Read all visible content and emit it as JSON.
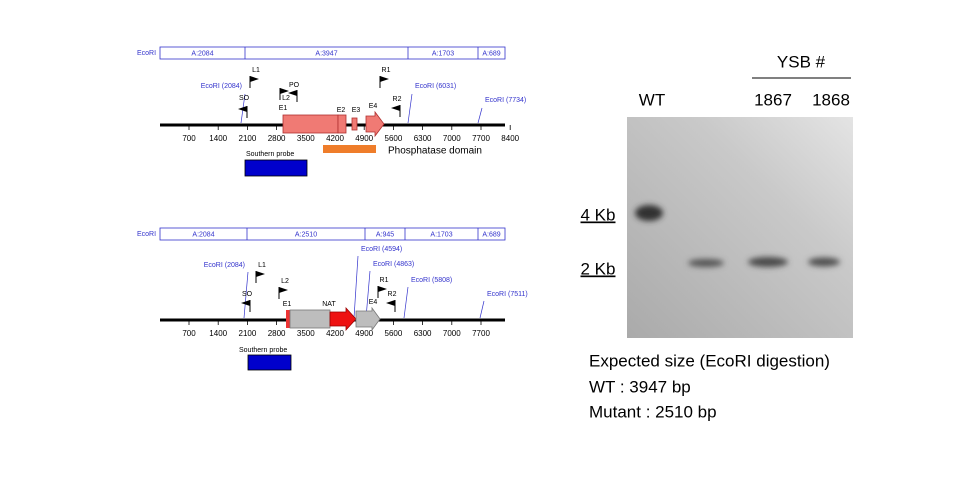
{
  "map_wt": {
    "enzyme": "EcoRI",
    "fragments": [
      "A:2084",
      "A:3947",
      "A:1703",
      "A:689"
    ],
    "ticks": [
      700,
      1400,
      2100,
      2800,
      3500,
      4200,
      4900,
      5600,
      6300,
      7000,
      7700,
      8400
    ],
    "sites": [
      "EcoRI (2084)",
      "EcoRI (6031)",
      "EcoRI (7734)"
    ],
    "primers": [
      "L1",
      "SO",
      "L2",
      "PO",
      "E1",
      "E2",
      "E3",
      "E4",
      "R1",
      "R2"
    ],
    "domain": "Phosphatase domain",
    "probe": "Southern probe"
  },
  "map_mutant": {
    "enzyme": "EcoRI",
    "fragments": [
      "A:2084",
      "A:2510",
      "A:945",
      "A:1703",
      "A:689"
    ],
    "ticks": [
      700,
      1400,
      2100,
      2800,
      3500,
      4200,
      4900,
      5600,
      6300,
      7000,
      7700
    ],
    "sites": [
      "EcoRI (2084)",
      "EcoRI (4594)",
      "EcoRI (4863)",
      "EcoRI (5808)",
      "EcoRI (7511)"
    ],
    "primers": [
      "L1",
      "L2",
      "SO",
      "E1",
      "NAT",
      "R1",
      "E4",
      "R2"
    ],
    "probe": "Southern probe"
  },
  "blot": {
    "group": "YSB #",
    "lanes": [
      "WT",
      "1867",
      "1868"
    ],
    "markers": [
      "4 Kb",
      "2 Kb"
    ]
  },
  "caption": [
    "Expected size (EcoRI digestion)",
    "WT : 3947 bp",
    "Mutant : 2510 bp"
  ]
}
